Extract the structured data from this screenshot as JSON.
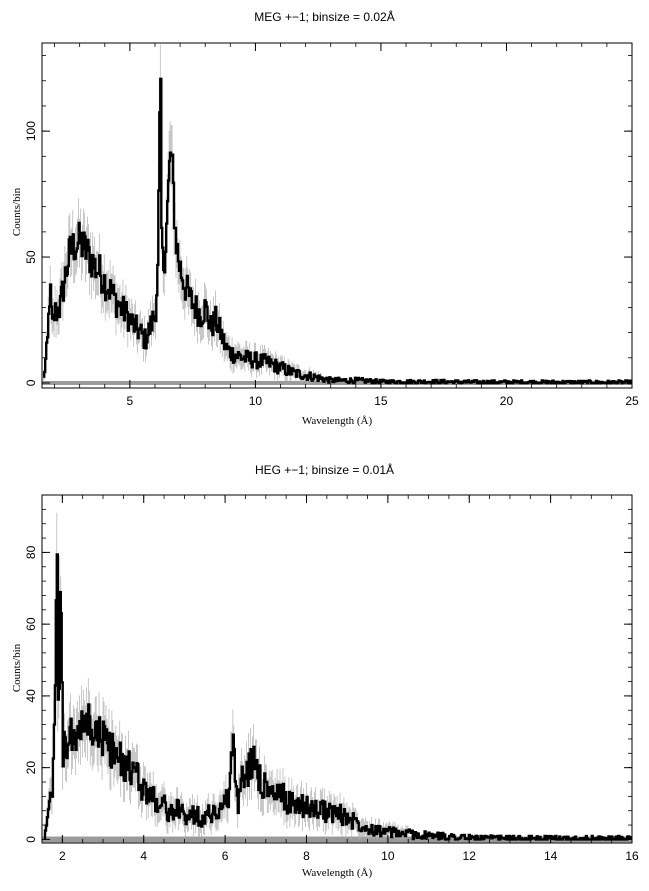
{
  "chart_data": [
    {
      "type": "line",
      "title": "MEG +−1; binsize = 0.02Å",
      "xlabel": "Wavelength (Å)",
      "ylabel": "Counts/bin",
      "xlim": [
        1.5,
        25
      ],
      "ylim": [
        -2,
        135
      ],
      "xticks": [
        5,
        10,
        15,
        20,
        25
      ],
      "xtick_labels": [
        "5",
        "10",
        "15",
        "20",
        "25"
      ],
      "yticks": [
        0,
        50,
        100
      ],
      "ytick_labels": [
        "0",
        "50",
        "100"
      ],
      "grid": false,
      "series": [
        {
          "x": [
            1.55,
            1.7,
            1.8,
            1.9,
            2.0,
            2.2,
            2.4,
            2.6,
            2.8,
            3.0,
            3.2,
            3.4,
            3.6,
            3.8,
            4.0,
            4.2,
            4.4,
            4.6,
            4.8,
            5.0,
            5.2,
            5.4,
            5.6,
            5.8,
            6.0,
            6.1,
            6.2,
            6.25,
            6.3,
            6.4,
            6.5,
            6.6,
            6.7,
            6.8,
            6.9,
            7.0,
            7.2,
            7.4,
            7.6,
            7.8,
            8.0,
            8.2,
            8.4,
            8.6,
            8.8,
            9.0,
            9.5,
            10.0,
            10.5,
            11.0,
            11.5,
            12.0,
            12.5,
            13.0,
            14.0,
            15.0,
            17.0,
            19.0,
            21.0,
            23.0,
            25.0
          ],
          "y": [
            2,
            15,
            38,
            22,
            28,
            30,
            42,
            52,
            55,
            56,
            53,
            50,
            46,
            44,
            40,
            37,
            33,
            30,
            28,
            25,
            22,
            20,
            17,
            22,
            28,
            45,
            123,
            60,
            45,
            55,
            72,
            92,
            80,
            60,
            50,
            45,
            38,
            33,
            30,
            27,
            30,
            22,
            25,
            20,
            14,
            12,
            10,
            9,
            8,
            6,
            4,
            3,
            2,
            1,
            1,
            0.5,
            0.5,
            0.3,
            0.3,
            0.2,
            0.2
          ]
        }
      ]
    },
    {
      "type": "line",
      "title": "HEG +−1; binsize = 0.01Å",
      "xlabel": "Wavelength (Å)",
      "ylabel": "Counts/bin",
      "xlim": [
        1.5,
        16
      ],
      "ylim": [
        -1,
        96
      ],
      "xticks": [
        2,
        4,
        6,
        8,
        10,
        12,
        14,
        16
      ],
      "xtick_labels": [
        "2",
        "4",
        "6",
        "8",
        "10",
        "12",
        "14",
        "16"
      ],
      "yticks": [
        0,
        20,
        40,
        60,
        80
      ],
      "ytick_labels": [
        "0",
        "20",
        "40",
        "60",
        "80"
      ],
      "grid": false,
      "series": [
        {
          "x": [
            1.55,
            1.65,
            1.75,
            1.82,
            1.86,
            1.9,
            1.95,
            2.0,
            2.2,
            2.4,
            2.6,
            2.8,
            3.0,
            3.2,
            3.4,
            3.6,
            3.8,
            4.0,
            4.2,
            4.4,
            4.6,
            4.8,
            5.0,
            5.2,
            5.4,
            5.6,
            5.8,
            6.0,
            6.1,
            6.2,
            6.25,
            6.3,
            6.4,
            6.6,
            6.7,
            6.8,
            6.9,
            7.0,
            7.2,
            7.4,
            7.6,
            7.8,
            8.0,
            8.4,
            8.8,
            9.2,
            9.6,
            10.0,
            10.5,
            11.0,
            11.5,
            12.0,
            12.6,
            13.0,
            14.0,
            15.0,
            16.0
          ],
          "y": [
            2,
            6,
            15,
            40,
            86,
            30,
            72,
            25,
            28,
            30,
            32,
            30,
            28,
            25,
            22,
            20,
            18,
            14,
            12,
            10,
            8,
            8,
            7,
            7,
            6,
            7,
            8,
            10,
            14,
            31,
            12,
            10,
            16,
            20,
            24,
            18,
            16,
            14,
            12,
            12,
            10,
            10,
            9,
            8,
            7,
            5,
            3,
            2,
            1.5,
            1,
            0.8,
            0.5,
            0.3,
            0.2,
            0.2,
            0.2,
            0.2
          ]
        }
      ]
    }
  ]
}
